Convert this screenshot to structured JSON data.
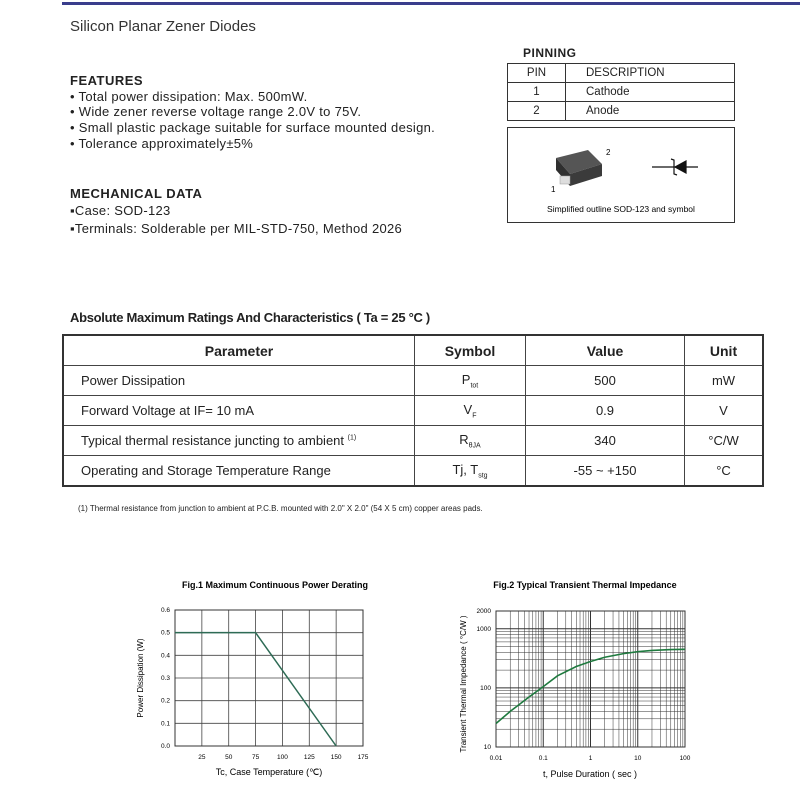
{
  "title": "Silicon Planar Zener Diodes",
  "features": {
    "heading": "FEATURES",
    "items": [
      "• Total power dissipation: Max. 500mW.",
      "• Wide zener reverse voltage range 2.0V to 75V.",
      "• Small plastic package suitable for surface mounted design.",
      "• Tolerance approximately±5%"
    ]
  },
  "mechanical": {
    "heading": "MECHANICAL DATA",
    "items": [
      "▪Case: SOD-123",
      "▪Terminals: Solderable per MIL-STD-750, Method 2026"
    ]
  },
  "pinning": {
    "heading": "PINNING",
    "headers": [
      "PIN",
      "DESCRIPTION"
    ],
    "rows": [
      [
        "1",
        "Cathode"
      ],
      [
        "2",
        "Anode"
      ]
    ],
    "caption": "Simplified outline SOD-123 and symbol",
    "pin1": "1",
    "pin2": "2"
  },
  "ratings": {
    "heading": "Absolute Maximum Ratings And Characteristics  ( Ta = 25 °C )",
    "headers": [
      "Parameter",
      "Symbol",
      "Value",
      "Unit"
    ],
    "rows": [
      {
        "param": "Power Dissipation",
        "sym": "P",
        "sub": "tot",
        "value": "500",
        "unit": "mW"
      },
      {
        "param": "Forward Voltage at IF= 10 mA",
        "sym": "V",
        "sub": "F",
        "value": "0.9",
        "unit": "V"
      },
      {
        "param": "Typical thermal resistance juncting to ambient",
        "sup": "(1)",
        "sym": "R",
        "sub": "θJA",
        "value": "340",
        "unit": "°C/W"
      },
      {
        "param": "Operating and Storage Temperature Range",
        "sym": "Tj, T",
        "sub": "stg",
        "value": "-55 ~ +150",
        "unit": "°C"
      }
    ],
    "footnote": "(1) Thermal resistance from junction to ambient at P.C.B. mounted with 2.0\" X 2.0\" (54 X 5 cm) copper areas pads."
  },
  "chart_data": [
    {
      "type": "line",
      "title": "Fig.1  Maximum Continuous Power Derating",
      "xlabel": "Tc, Case Temperature (℃)",
      "ylabel": "Power Dissipation (W)",
      "xlim": [
        0,
        175
      ],
      "ylim": [
        0,
        0.6
      ],
      "grid": true,
      "xticks": [
        "25",
        "50",
        "75",
        "100",
        "125",
        "150",
        "175"
      ],
      "yticks": [
        "0.0",
        "0.1",
        "0.2",
        "0.3",
        "0.4",
        "0.5",
        "0.6"
      ],
      "x": [
        0,
        75,
        150
      ],
      "y": [
        0.5,
        0.5,
        0
      ],
      "color": "#2e6b55"
    },
    {
      "type": "line",
      "title": "Fig.2  Typical Transient Thermal Impedance",
      "xlabel": "t, Pulse Duration ( sec )",
      "ylabel": "Transient Thermal Impedance ( °C/W )",
      "xscale": "log",
      "yscale": "log",
      "xlim": [
        0.01,
        100
      ],
      "ylim": [
        10,
        2000
      ],
      "grid": true,
      "xticks": [
        "0.01",
        "0.1",
        "1",
        "10",
        "100"
      ],
      "yticks": [
        "10",
        "100",
        "1000",
        "2000"
      ],
      "x": [
        0.01,
        0.02,
        0.05,
        0.1,
        0.2,
        0.5,
        1,
        2,
        5,
        10,
        20,
        50,
        100
      ],
      "y": [
        25,
        40,
        70,
        105,
        160,
        230,
        280,
        330,
        380,
        410,
        430,
        445,
        450
      ],
      "color": "#1f7a3f"
    }
  ]
}
